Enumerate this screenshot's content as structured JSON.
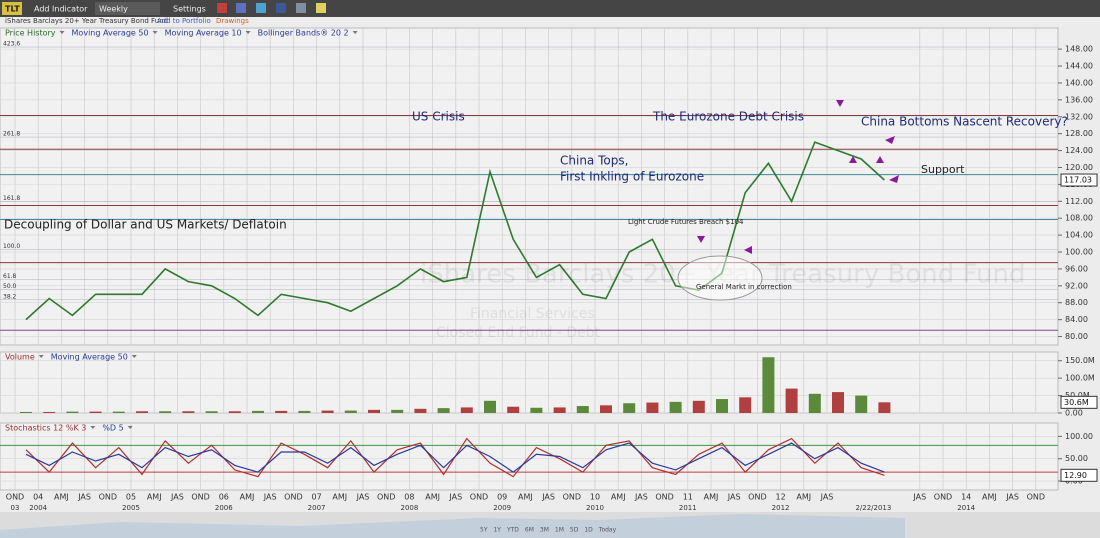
{
  "toolbar": {
    "symbol": "TLT",
    "add_indicator": "Add Indicator",
    "interval": "Weekly",
    "settings": "Settings",
    "name": "iShares Barclays 20+ Year Treasury Bond Fund",
    "add_to_portfolio": "Add to Portfolio",
    "drawings": "Drawings"
  },
  "watermark": [
    "Financial Services",
    "Closed End Fund - Debt"
  ],
  "range_buttons": [
    "5Y",
    "1Y",
    "YTD",
    "6M",
    "3M",
    "1M",
    "5D",
    "1D",
    "Today"
  ],
  "chart_data": [
    {
      "type": "line",
      "series": [
        {
          "name": "Price History",
          "color": "#2f7a2f",
          "values": [
            84,
            89,
            85,
            90,
            90,
            90,
            96,
            93,
            92,
            89,
            85,
            90,
            89,
            88,
            86,
            89,
            92,
            96,
            93,
            94,
            119,
            103,
            94,
            97,
            90,
            89,
            100,
            103,
            92,
            91,
            95,
            114,
            121,
            112,
            126,
            124,
            122,
            117.03,
            null,
            null,
            null,
            null,
            null,
            null,
            null
          ]
        }
      ],
      "indicators": [
        "Moving Average 50",
        "Moving Average 10",
        "Bollinger Bands® 20 2"
      ],
      "ylim": [
        78,
        153
      ],
      "yticks": [
        {
          "value": 80,
          "label": "80.00"
        },
        {
          "value": 84,
          "label": "84.00"
        },
        {
          "value": 88,
          "label": "88.00"
        },
        {
          "value": 92,
          "label": "92.00"
        },
        {
          "value": 96,
          "label": "96.00"
        },
        {
          "value": 100,
          "label": "100.00"
        },
        {
          "value": 104,
          "label": "104.00"
        },
        {
          "value": 108,
          "label": "108.00"
        },
        {
          "value": 112,
          "label": "112.00"
        },
        {
          "value": 116,
          "label": "116.00"
        },
        {
          "value": 120,
          "label": "120.00"
        },
        {
          "value": 124,
          "label": "124.00"
        },
        {
          "value": 128,
          "label": "128.00"
        },
        {
          "value": 132,
          "label": "132.00"
        },
        {
          "value": 136,
          "label": "136.00"
        },
        {
          "value": 140,
          "label": "140.00"
        },
        {
          "value": 144,
          "label": "144.00"
        },
        {
          "value": 148,
          "label": "148.00"
        }
      ],
      "reference_lines": [
        {
          "value": 132.3,
          "color": "#8b3a3a"
        },
        {
          "value": 124.3,
          "color": "#8b3a3a"
        },
        {
          "value": 118.3,
          "color": "#3a8a9a"
        },
        {
          "value": 111,
          "color": "#8b3a3a"
        },
        {
          "value": 107.7,
          "color": "#3a8a9a"
        },
        {
          "value": 97.5,
          "color": "#8b3a3a"
        },
        {
          "value": 81.5,
          "color": "#7a4a8a"
        }
      ],
      "fib_levels": [
        {
          "value": 148.5,
          "label": "423.6"
        },
        {
          "value": 127.2,
          "label": "261.8"
        },
        {
          "value": 111.9,
          "label": "161.8"
        },
        {
          "value": 100.6,
          "label": "100.0"
        },
        {
          "value": 93.5,
          "label": "61.8"
        },
        {
          "value": 91.1,
          "label": "50.0"
        },
        {
          "value": 88.7,
          "label": "38.2"
        }
      ],
      "annotations": [
        "US Crisis",
        "The Eurozone Debt Crisis",
        "China Bottoms Nascent Recovery?",
        "China Tops,",
        "First Inkling of Eurozone",
        "Support",
        "Decoupling of Dollar and US Markets/ Deflatoin",
        "Light Crude Futures Breach $104",
        "General Markt in correction"
      ]
    },
    {
      "type": "bar",
      "series": [
        {
          "name": "Volume",
          "color": "#5a8a3a",
          "values": [
            3000000,
            3000000,
            4000000,
            4000000,
            4000000,
            5000000,
            5000000,
            5000000,
            5000000,
            5000000,
            6000000,
            6000000,
            6000000,
            7000000,
            7000000,
            9000000,
            9000000,
            12000000,
            14000000,
            16000000,
            35000000,
            18000000,
            15000000,
            16000000,
            20000000,
            22000000,
            28000000,
            30000000,
            32000000,
            35000000,
            40000000,
            45000000,
            160000000,
            70000000,
            55000000,
            60000000,
            50000000,
            30600000,
            null,
            null,
            null,
            null,
            null,
            null,
            null
          ],
          "value_labels": [
            null,
            null,
            null,
            null,
            null,
            null,
            null,
            null,
            null,
            null,
            null,
            null,
            null,
            null,
            null,
            null,
            null,
            null,
            null,
            null,
            null,
            null,
            null,
            null,
            null,
            null,
            null,
            null,
            null,
            null,
            null,
            null,
            null,
            null,
            null,
            null,
            null,
            "30.6M",
            null,
            null,
            null,
            null,
            null,
            null,
            null
          ]
        }
      ],
      "indicators": [
        "Moving Average 50"
      ],
      "ylim": [
        0,
        175000000
      ],
      "yticks": [
        {
          "value": 0,
          "label": "0.00"
        },
        {
          "value": 50000000,
          "label": "50.0M"
        },
        {
          "value": 100000000,
          "label": "100.0M"
        },
        {
          "value": 150000000,
          "label": "150.0M"
        }
      ]
    },
    {
      "type": "line",
      "series": [
        {
          "name": "Stochastics 12 %K 3",
          "color": "#b03030",
          "values": [
            70,
            20,
            85,
            30,
            75,
            15,
            90,
            40,
            80,
            25,
            10,
            85,
            60,
            30,
            90,
            20,
            70,
            85,
            15,
            95,
            40,
            10,
            75,
            50,
            20,
            80,
            90,
            30,
            15,
            60,
            85,
            20,
            70,
            95,
            40,
            85,
            30,
            12.9,
            null,
            null,
            null,
            null,
            null,
            null,
            null
          ],
          "value_labels": [
            null,
            null,
            null,
            null,
            null,
            null,
            null,
            null,
            null,
            null,
            null,
            null,
            null,
            null,
            null,
            null,
            null,
            null,
            null,
            null,
            null,
            null,
            null,
            null,
            null,
            null,
            null,
            null,
            null,
            null,
            null,
            null,
            null,
            null,
            null,
            null,
            null,
            "12.90",
            null,
            null,
            null,
            null,
            null,
            null,
            null
          ]
        },
        {
          "name": "%D 5",
          "color": "#2a3a9a",
          "values": [
            60,
            35,
            65,
            45,
            60,
            30,
            75,
            55,
            70,
            35,
            20,
            65,
            65,
            40,
            75,
            35,
            60,
            80,
            30,
            80,
            55,
            20,
            60,
            55,
            30,
            70,
            85,
            40,
            25,
            50,
            75,
            35,
            60,
            85,
            50,
            75,
            40,
            20,
            null,
            null,
            null,
            null,
            null,
            null,
            null
          ]
        }
      ],
      "ylim": [
        -20,
        130
      ],
      "yticks": [
        {
          "value": 0,
          "label": "0.00"
        },
        {
          "value": 50,
          "label": "50.00"
        },
        {
          "value": 100,
          "label": "100.00"
        }
      ],
      "levels": [
        20,
        80
      ],
      "categories": [
        "OND",
        "04",
        "AMJ",
        "JAS",
        "OND",
        "05",
        "AMJ",
        "JAS",
        "OND",
        "06",
        "AMJ",
        "JAS",
        "OND",
        "07",
        "AMJ",
        "JAS",
        "OND",
        "08",
        "AMJ",
        "JAS",
        "OND",
        "09",
        "AMJ",
        "JAS",
        "OND",
        "10",
        "AMJ",
        "JAS",
        "OND",
        "11",
        "AMJ",
        "JAS",
        "OND",
        "12",
        "AMJ",
        "JAS",
        null,
        null,
        null,
        "JAS",
        "OND",
        "14",
        "AMJ",
        "JAS",
        "OND"
      ],
      "category_groups": [
        "03",
        "2004",
        null,
        null,
        null,
        "2005",
        null,
        null,
        null,
        "2006",
        null,
        null,
        null,
        "2007",
        null,
        null,
        null,
        "2008",
        null,
        null,
        null,
        "2009",
        null,
        null,
        null,
        "2010",
        null,
        null,
        null,
        "2011",
        null,
        null,
        null,
        "2012",
        null,
        null,
        null,
        "2/22/2013",
        null,
        null,
        null,
        "2014",
        null,
        null,
        null
      ]
    }
  ]
}
